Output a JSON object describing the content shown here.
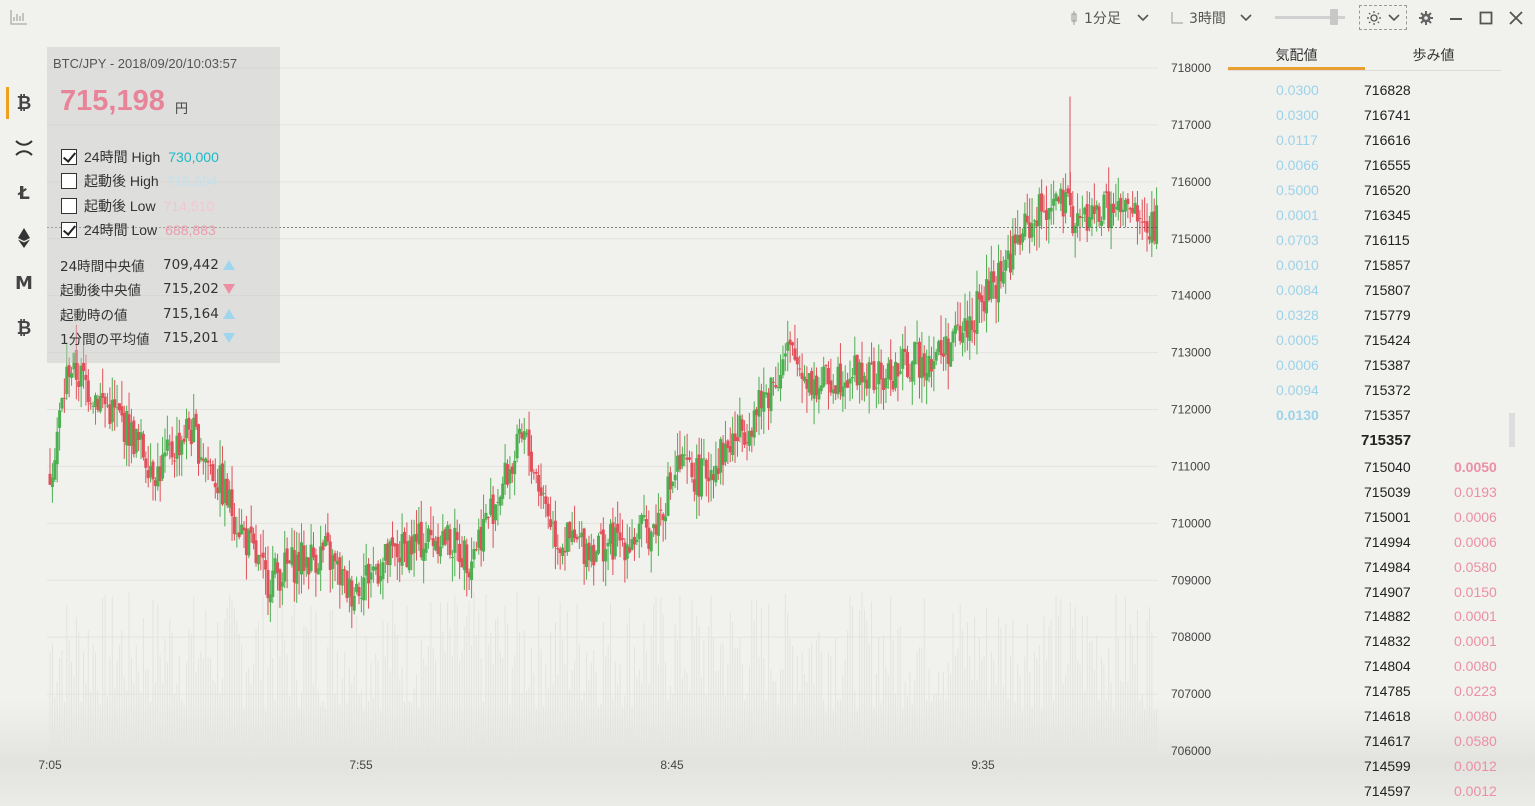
{
  "toolbar": {
    "candle_interval": "1分足",
    "time_range": "3時間"
  },
  "coins": [
    "bitcoin",
    "xrp",
    "litecoin",
    "ethereum",
    "monacoin",
    "bitcoin-cash"
  ],
  "info": {
    "pair_time": "BTC/JPY - 2018/09/20/10:03:57",
    "price": "715,198",
    "unit": "円",
    "checks": [
      {
        "label": "24時間 High",
        "value": "730,000",
        "checked": true,
        "color": "#19b9c9"
      },
      {
        "label": "起動後 High",
        "value": "715,894",
        "checked": false,
        "color": "#c3e0ec"
      },
      {
        "label": "起動後 Low",
        "value": "714,510",
        "checked": false,
        "color": "#f0c8d2"
      },
      {
        "label": "24時間 Low",
        "value": "688,883",
        "checked": true,
        "color": "#ec9bae"
      }
    ],
    "stats": [
      {
        "label": "24時間中央値",
        "value": "709,442",
        "trend": "up"
      },
      {
        "label": "起動後中央値",
        "value": "715,202",
        "trend": "down"
      },
      {
        "label": "起動時の値",
        "value": "715,164",
        "trend": "up"
      },
      {
        "label": "1分間の平均値",
        "value": "715,201",
        "trend": "down"
      }
    ]
  },
  "chart_data": {
    "type": "candlestick",
    "pair": "BTC/JPY",
    "y_ticks": [
      "718000",
      "717000",
      "716000",
      "715000",
      "714000",
      "713000",
      "712000",
      "711000",
      "710000",
      "709000",
      "708000",
      "707000",
      "706000"
    ],
    "ylim": [
      706000,
      718000
    ],
    "x_ticks": [
      "7:05",
      "7:55",
      "8:45",
      "9:35"
    ],
    "current_line": 715198,
    "trend_path": [
      [
        0,
        710900
      ],
      [
        8,
        712800
      ],
      [
        18,
        712300
      ],
      [
        30,
        711800
      ],
      [
        45,
        710900
      ],
      [
        58,
        711700
      ],
      [
        72,
        710600
      ],
      [
        90,
        709000
      ],
      [
        102,
        709300
      ],
      [
        115,
        709500
      ],
      [
        125,
        708800
      ],
      [
        135,
        709200
      ],
      [
        150,
        709600
      ],
      [
        163,
        709800
      ],
      [
        175,
        709400
      ],
      [
        188,
        710600
      ],
      [
        198,
        711500
      ],
      [
        212,
        709700
      ],
      [
        226,
        709600
      ],
      [
        240,
        709700
      ],
      [
        252,
        709900
      ],
      [
        262,
        711000
      ],
      [
        272,
        710800
      ],
      [
        284,
        711400
      ],
      [
        296,
        712000
      ],
      [
        308,
        713000
      ],
      [
        320,
        712400
      ],
      [
        333,
        712700
      ],
      [
        347,
        712500
      ],
      [
        358,
        712800
      ],
      [
        372,
        713000
      ],
      [
        382,
        713400
      ],
      [
        394,
        714200
      ],
      [
        406,
        715100
      ],
      [
        418,
        715700
      ],
      [
        430,
        715300
      ],
      [
        440,
        715500
      ],
      [
        452,
        715400
      ],
      [
        456,
        715300
      ],
      [
        458,
        715100
      ],
      [
        462,
        715300
      ]
    ]
  },
  "book": {
    "tab_quote": "気配値",
    "tab_trades": "歩み値",
    "asks": [
      {
        "size": "0.0300",
        "price": "716828"
      },
      {
        "size": "0.0300",
        "price": "716741"
      },
      {
        "size": "0.0117",
        "price": "716616"
      },
      {
        "size": "0.0066",
        "price": "716555"
      },
      {
        "size": "0.5000",
        "price": "716520"
      },
      {
        "size": "0.0001",
        "price": "716345"
      },
      {
        "size": "0.0703",
        "price": "716115"
      },
      {
        "size": "0.0010",
        "price": "715857"
      },
      {
        "size": "0.0084",
        "price": "715807"
      },
      {
        "size": "0.0328",
        "price": "715779"
      },
      {
        "size": "0.0005",
        "price": "715424"
      },
      {
        "size": "0.0006",
        "price": "715387"
      },
      {
        "size": "0.0094",
        "price": "715372"
      },
      {
        "size": "0.0130",
        "price": "715357"
      }
    ],
    "mid_price": "715357",
    "bids": [
      {
        "price": "715040",
        "size": "0.0050"
      },
      {
        "price": "715039",
        "size": "0.0193"
      },
      {
        "price": "715001",
        "size": "0.0006"
      },
      {
        "price": "714994",
        "size": "0.0006"
      },
      {
        "price": "714984",
        "size": "0.0580"
      },
      {
        "price": "714907",
        "size": "0.0150"
      },
      {
        "price": "714882",
        "size": "0.0001"
      },
      {
        "price": "714832",
        "size": "0.0001"
      },
      {
        "price": "714804",
        "size": "0.0080"
      },
      {
        "price": "714785",
        "size": "0.0223"
      },
      {
        "price": "714618",
        "size": "0.0080"
      },
      {
        "price": "714617",
        "size": "0.0580"
      },
      {
        "price": "714599",
        "size": "0.0012"
      },
      {
        "price": "714597",
        "size": "0.0012"
      }
    ]
  }
}
